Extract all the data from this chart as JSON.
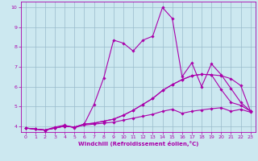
{
  "xlabel": "Windchill (Refroidissement éolien,°C)",
  "bg_color": "#cce8f0",
  "line_color": "#aa00aa",
  "xlim": [
    -0.5,
    23.5
  ],
  "ylim": [
    3.7,
    10.3
  ],
  "xticks": [
    0,
    1,
    2,
    3,
    4,
    5,
    6,
    7,
    8,
    9,
    10,
    11,
    12,
    13,
    14,
    15,
    16,
    17,
    18,
    19,
    20,
    21,
    22,
    23
  ],
  "yticks": [
    4,
    5,
    6,
    7,
    8,
    9,
    10
  ],
  "grid_color": "#99bbcc",
  "series": [
    [
      3.9,
      3.85,
      3.8,
      3.9,
      4.0,
      3.95,
      4.05,
      4.1,
      4.15,
      4.2,
      4.3,
      4.4,
      4.5,
      4.6,
      4.75,
      4.85,
      4.65,
      4.75,
      4.82,
      4.88,
      4.93,
      4.75,
      4.85,
      4.7
    ],
    [
      3.9,
      3.85,
      3.8,
      3.9,
      4.0,
      3.95,
      4.1,
      4.15,
      4.25,
      4.35,
      4.55,
      4.8,
      5.1,
      5.4,
      5.8,
      6.1,
      6.35,
      6.55,
      6.62,
      6.6,
      5.85,
      5.2,
      5.05,
      4.75
    ],
    [
      3.9,
      3.85,
      3.8,
      3.95,
      4.05,
      3.9,
      4.1,
      5.1,
      6.45,
      8.35,
      8.2,
      7.8,
      8.35,
      8.55,
      10.0,
      9.45,
      6.5,
      7.2,
      6.0,
      7.15,
      6.6,
      5.9,
      5.2,
      4.75
    ],
    [
      3.9,
      3.85,
      3.8,
      3.9,
      4.0,
      3.95,
      4.1,
      4.15,
      4.25,
      4.35,
      4.55,
      4.8,
      5.1,
      5.4,
      5.8,
      6.1,
      6.35,
      6.55,
      6.62,
      6.6,
      6.55,
      6.4,
      6.05,
      4.75
    ]
  ]
}
